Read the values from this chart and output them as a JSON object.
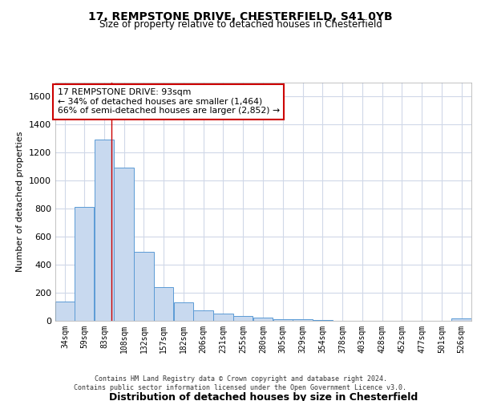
{
  "title1": "17, REMPSTONE DRIVE, CHESTERFIELD, S41 0YB",
  "title2": "Size of property relative to detached houses in Chesterfield",
  "xlabel": "Distribution of detached houses by size in Chesterfield",
  "ylabel": "Number of detached properties",
  "bar_color": "#c8d9ef",
  "bar_edge_color": "#5b9bd5",
  "background_color": "#ffffff",
  "grid_color": "#d0d8e8",
  "annotation_text": "17 REMPSTONE DRIVE: 93sqm\n← 34% of detached houses are smaller (1,464)\n66% of semi-detached houses are larger (2,852) →",
  "annotation_box_color": "#ffffff",
  "annotation_box_edge": "#cc0000",
  "red_line_x": 93,
  "categories": [
    "34sqm",
    "59sqm",
    "83sqm",
    "108sqm",
    "132sqm",
    "157sqm",
    "182sqm",
    "206sqm",
    "231sqm",
    "255sqm",
    "280sqm",
    "305sqm",
    "329sqm",
    "354sqm",
    "378sqm",
    "403sqm",
    "428sqm",
    "452sqm",
    "477sqm",
    "501sqm",
    "526sqm"
  ],
  "bin_left_edges": [
    22,
    46,
    71,
    96,
    121,
    146,
    171,
    196,
    221,
    246,
    271,
    296,
    321,
    346,
    371,
    396,
    421,
    446,
    471,
    496,
    521
  ],
  "bin_width": 25,
  "values": [
    140,
    810,
    1290,
    1090,
    490,
    240,
    130,
    75,
    50,
    35,
    25,
    12,
    10,
    8,
    0,
    0,
    0,
    0,
    0,
    0,
    15
  ],
  "ylim": [
    0,
    1700
  ],
  "yticks": [
    0,
    200,
    400,
    600,
    800,
    1000,
    1200,
    1400,
    1600
  ],
  "footer1": "Contains HM Land Registry data © Crown copyright and database right 2024.",
  "footer2": "Contains public sector information licensed under the Open Government Licence v3.0."
}
